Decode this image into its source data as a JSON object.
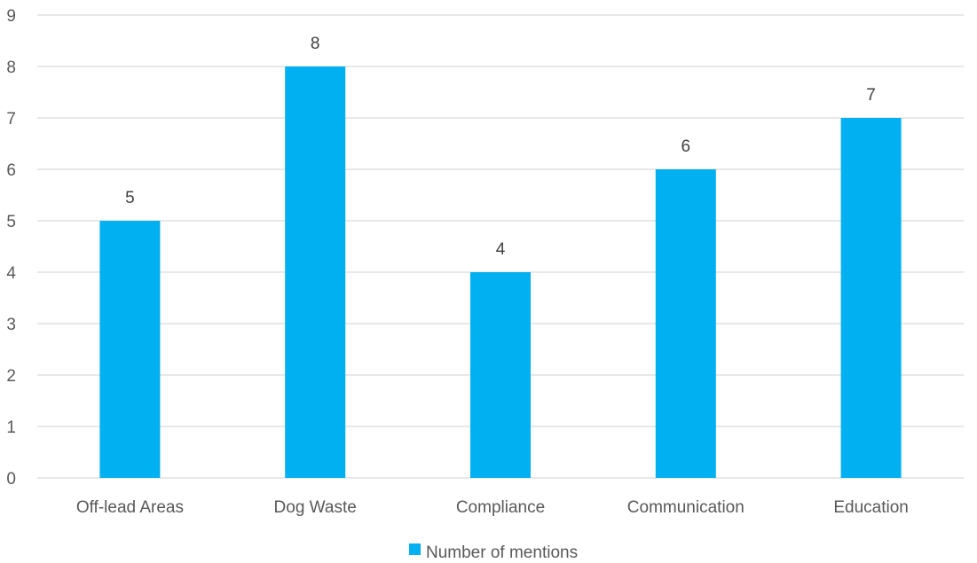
{
  "chart_data": {
    "type": "bar",
    "categories": [
      "Off-lead Areas",
      "Dog Waste",
      "Compliance",
      "Communication",
      "Education"
    ],
    "series": [
      {
        "name": "Number of mentions",
        "values": [
          5,
          8,
          4,
          6,
          7
        ],
        "color": "#00B0F0"
      }
    ],
    "ylim": [
      0,
      9
    ],
    "yticks": [
      0,
      1,
      2,
      3,
      4,
      5,
      6,
      7,
      8,
      9
    ],
    "data_labels": true,
    "grid": true,
    "legend_position": "bottom",
    "gridline_color": "#D9D9D9"
  }
}
